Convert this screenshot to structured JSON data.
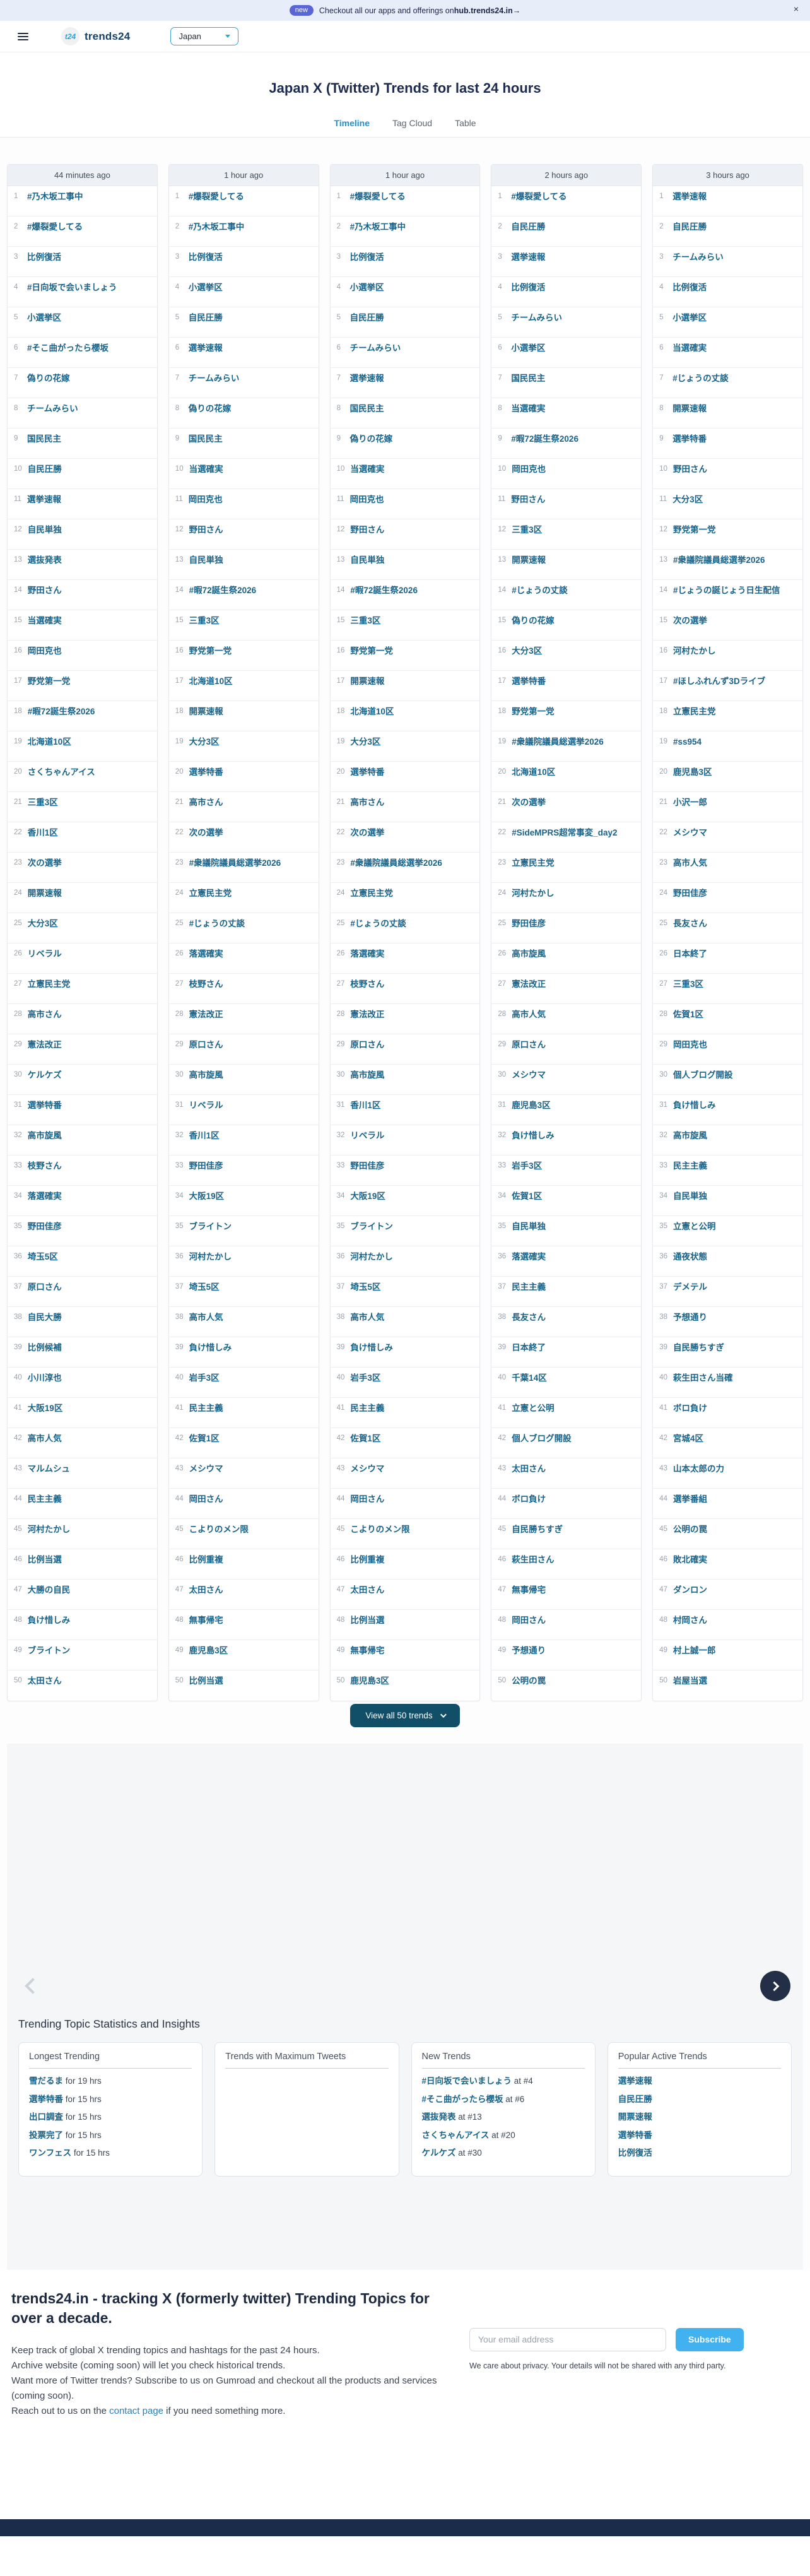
{
  "announcement": {
    "badge": "new",
    "text": "Checkout all our apps and offerings on ",
    "link": "hub.trends24.in→",
    "close": "×"
  },
  "header": {
    "logo": "t24",
    "brand": "trends24",
    "country": "Japan"
  },
  "page": {
    "title": "Japan X (Twitter) Trends for last 24 hours"
  },
  "tabs": [
    {
      "label": "Timeline",
      "active": true
    },
    {
      "label": "Tag Cloud",
      "active": false
    },
    {
      "label": "Table",
      "active": false
    }
  ],
  "view_all": {
    "label": "View all 50 trends"
  },
  "colors": {
    "accent_tab": "#2191d0",
    "trend_link": "#186389",
    "view_all_button": "#114f68",
    "subscribe_button": "#41b2ef",
    "badge": "#5a66d6",
    "bottom_bar": "#1b2b4a"
  },
  "columns": [
    {
      "time": "44 minutes ago",
      "trends": [
        "#乃木坂工事中",
        "#爆裂愛してる",
        "比例復活",
        "#日向坂で会いましょう",
        "小選挙区",
        "#そこ曲がったら櫻坂",
        "偽りの花嫁",
        "チームみらい",
        "国民民主",
        "自民圧勝",
        "選挙速報",
        "自民単独",
        "選抜発表",
        "野田さん",
        "当選確実",
        "岡田克也",
        "野党第一党",
        "#暇72誕生祭2026",
        "北海道10区",
        "さくちゃんアイス",
        "三重3区",
        "香川1区",
        "次の選挙",
        "開票速報",
        "大分3区",
        "リベラル",
        "立憲民主党",
        "高市さん",
        "憲法改正",
        "ケルケズ",
        "選挙特番",
        "高市旋風",
        "枝野さん",
        "落選確実",
        "野田佳彦",
        "埼玉5区",
        "原口さん",
        "自民大勝",
        "比例候補",
        "小川淳也",
        "大阪19区",
        "高市人気",
        "マルムシュ",
        "民主主義",
        "河村たかし",
        "比例当選",
        "大勝の自民",
        "負け惜しみ",
        "ブライトン",
        "太田さん"
      ]
    },
    {
      "time": "1 hour ago",
      "trends": [
        "#爆裂愛してる",
        "#乃木坂工事中",
        "比例復活",
        "小選挙区",
        "自民圧勝",
        "選挙速報",
        "チームみらい",
        "偽りの花嫁",
        "国民民主",
        "当選確実",
        "岡田克也",
        "野田さん",
        "自民単独",
        "#暇72誕生祭2026",
        "三重3区",
        "野党第一党",
        "北海道10区",
        "開票速報",
        "大分3区",
        "選挙特番",
        "高市さん",
        "次の選挙",
        "#衆議院議員総選挙2026",
        "立憲民主党",
        "#じょうの丈談",
        "落選確実",
        "枝野さん",
        "憲法改正",
        "原口さん",
        "高市旋風",
        "リベラル",
        "香川1区",
        "野田佳彦",
        "大阪19区",
        "ブライトン",
        "河村たかし",
        "埼玉5区",
        "高市人気",
        "負け惜しみ",
        "岩手3区",
        "民主主義",
        "佐賀1区",
        "メシウマ",
        "岡田さん",
        "こよりのメン限",
        "比例重複",
        "太田さん",
        "無事帰宅",
        "鹿児島3区",
        "比例当選"
      ]
    },
    {
      "time": "1 hour ago",
      "trends": [
        "#爆裂愛してる",
        "#乃木坂工事中",
        "比例復活",
        "小選挙区",
        "自民圧勝",
        "チームみらい",
        "選挙速報",
        "国民民主",
        "偽りの花嫁",
        "当選確実",
        "岡田克也",
        "野田さん",
        "自民単独",
        "#暇72誕生祭2026",
        "三重3区",
        "野党第一党",
        "開票速報",
        "北海道10区",
        "大分3区",
        "選挙特番",
        "高市さん",
        "次の選挙",
        "#衆議院議員総選挙2026",
        "立憲民主党",
        "#じょうの丈談",
        "落選確実",
        "枝野さん",
        "憲法改正",
        "原口さん",
        "高市旋風",
        "香川1区",
        "リベラル",
        "野田佳彦",
        "大阪19区",
        "ブライトン",
        "河村たかし",
        "埼玉5区",
        "高市人気",
        "負け惜しみ",
        "岩手3区",
        "民主主義",
        "佐賀1区",
        "メシウマ",
        "岡田さん",
        "こよりのメン限",
        "比例重複",
        "太田さん",
        "比例当選",
        "無事帰宅",
        "鹿児島3区"
      ]
    },
    {
      "time": "2 hours ago",
      "trends": [
        "#爆裂愛してる",
        "自民圧勝",
        "選挙速報",
        "比例復活",
        "チームみらい",
        "小選挙区",
        "国民民主",
        "当選確実",
        "#暇72誕生祭2026",
        "岡田克也",
        "野田さん",
        "三重3区",
        "開票速報",
        "#じょうの丈談",
        "偽りの花嫁",
        "大分3区",
        "選挙特番",
        "野党第一党",
        "#衆議院議員総選挙2026",
        "北海道10区",
        "次の選挙",
        "#SideMPRS超常事変_day2",
        "立憲民主党",
        "河村たかし",
        "野田佳彦",
        "高市旋風",
        "憲法改正",
        "高市人気",
        "原口さん",
        "メシウマ",
        "鹿児島3区",
        "負け惜しみ",
        "岩手3区",
        "佐賀1区",
        "自民単独",
        "落選確実",
        "民主主義",
        "長友さん",
        "日本終了",
        "千葉14区",
        "立憲と公明",
        "個人ブログ開設",
        "太田さん",
        "ボロ負け",
        "自民勝ちすぎ",
        "萩生田さん",
        "無事帰宅",
        "岡田さん",
        "予想通り",
        "公明の罠"
      ]
    },
    {
      "time": "3 hours ago",
      "trends": [
        "選挙速報",
        "自民圧勝",
        "チームみらい",
        "比例復活",
        "小選挙区",
        "当選確実",
        "#じょうの丈談",
        "開票速報",
        "選挙特番",
        "野田さん",
        "大分3区",
        "野党第一党",
        "#衆議院議員総選挙2026",
        "#じょうの誕じょう日生配信",
        "次の選挙",
        "河村たかし",
        "#ほしふれんず3Dライブ",
        "立憲民主党",
        "#ss954",
        "鹿児島3区",
        "小沢一郎",
        "メシウマ",
        "高市人気",
        "野田佳彦",
        "長友さん",
        "日本終了",
        "三重3区",
        "佐賀1区",
        "岡田克也",
        "個人ブログ開設",
        "負け惜しみ",
        "高市旋風",
        "民主主義",
        "自民単独",
        "立憲と公明",
        "通夜状態",
        "デメテル",
        "予想通り",
        "自民勝ちすぎ",
        "萩生田さん当確",
        "ボロ負け",
        "宮城4区",
        "山本太郎の力",
        "選挙番組",
        "公明の罠",
        "敗北確実",
        "ダンロン",
        "村岡さん",
        "村上誠一郎",
        "岩屋当選"
      ]
    }
  ],
  "stats": {
    "heading": "Trending Topic Statistics and Insights",
    "cards": [
      {
        "title": "Longest Trending",
        "items": [
          {
            "label": "雪だるま",
            "suffix": " for 19 hrs"
          },
          {
            "label": "選挙特番",
            "suffix": " for 15 hrs"
          },
          {
            "label": "出口調査",
            "suffix": " for 15 hrs"
          },
          {
            "label": "投票完了",
            "suffix": " for 15 hrs"
          },
          {
            "label": "ワンフェス",
            "suffix": " for 15 hrs"
          }
        ]
      },
      {
        "title": "Trends with Maximum Tweets",
        "items": []
      },
      {
        "title": "New Trends",
        "items": [
          {
            "label": "#日向坂で会いましょう",
            "suffix": " at #4"
          },
          {
            "label": "#そこ曲がったら櫻坂",
            "suffix": " at #6"
          },
          {
            "label": "選抜発表",
            "suffix": " at #13"
          },
          {
            "label": "さくちゃんアイス",
            "suffix": " at #20"
          },
          {
            "label": "ケルケズ",
            "suffix": " at #30"
          }
        ]
      },
      {
        "title": "Popular Active Trends",
        "items": [
          {
            "label": "選挙速報",
            "suffix": ""
          },
          {
            "label": "自民圧勝",
            "suffix": ""
          },
          {
            "label": "開票速報",
            "suffix": ""
          },
          {
            "label": "選挙特番",
            "suffix": ""
          },
          {
            "label": "比例復活",
            "suffix": ""
          }
        ]
      }
    ]
  },
  "footer": {
    "heading": "trends24.in - tracking X (formerly twitter) Trending Topics for over a decade.",
    "lines": [
      "Keep track of global X trending topics and hashtags for the past 24 hours.",
      "Archive website (coming soon) will let you check historical trends.",
      "Want more of Twitter trends? Subscribe to us on Gumroad and checkout all the products and services (coming soon)."
    ],
    "contact_pre": "Reach out to us on the ",
    "contact_link": "contact page",
    "contact_post": " if you need something more.",
    "email_placeholder": "Your email address",
    "subscribe_label": "Subscribe",
    "privacy": "We care about privacy. Your details will not be shared with any third party."
  }
}
